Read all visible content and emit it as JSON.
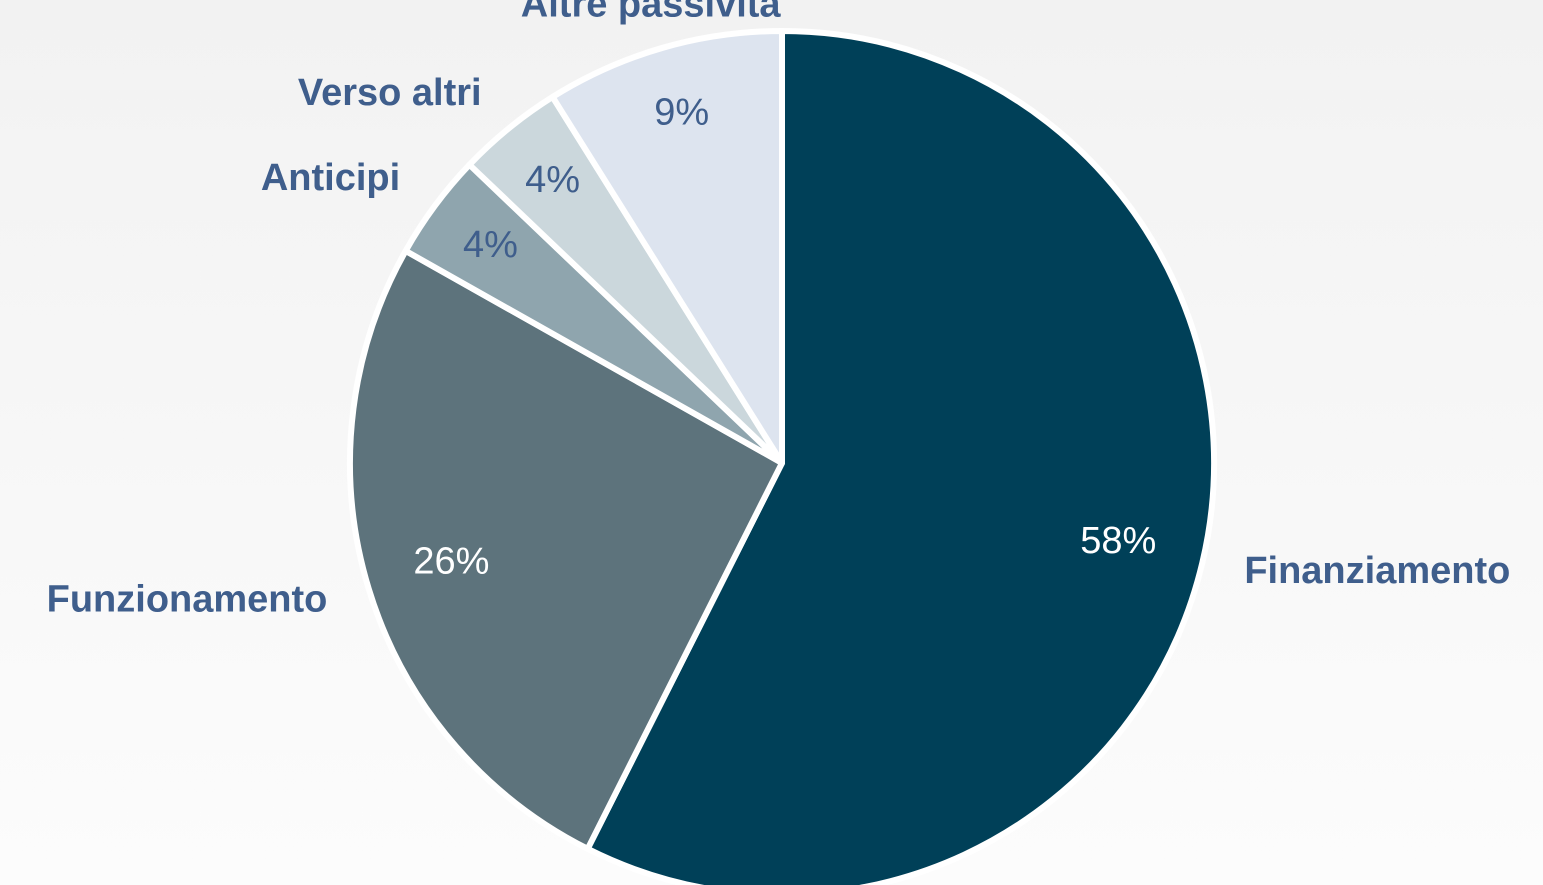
{
  "chart_data": {
    "type": "pie",
    "categories": [
      "Finanziamento",
      "Funzionamento",
      "Anticipi",
      "Verso altri",
      "Altre passività"
    ],
    "values": [
      58,
      26,
      4,
      4,
      9
    ],
    "value_labels": [
      "58%",
      "26%",
      "4%",
      "4%",
      "9%"
    ],
    "colors": [
      "#004058",
      "#5d737c",
      "#8fa5ae",
      "#cbd7dc",
      "#dde4ef"
    ]
  }
}
